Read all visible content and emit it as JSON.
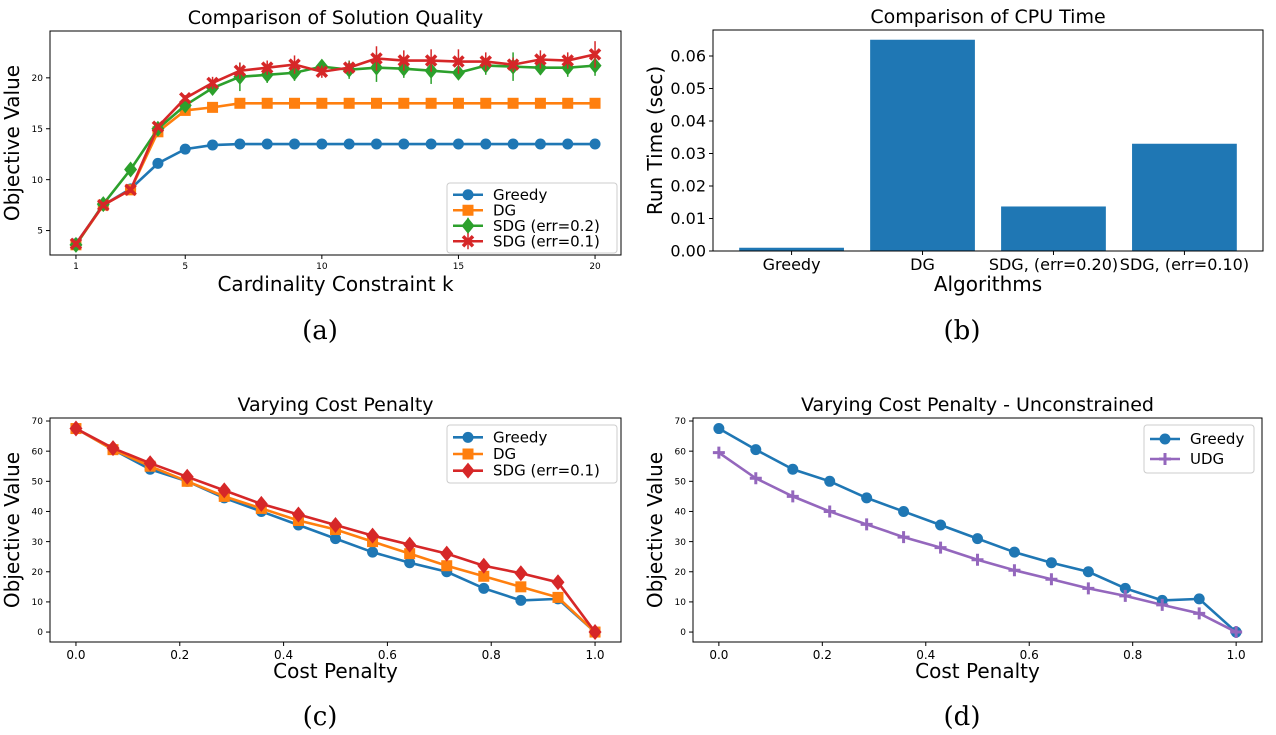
{
  "captions": [
    "(a)",
    "(b)",
    "(c)",
    "(d)"
  ],
  "chart_data": [
    {
      "type": "line",
      "title": "Comparison of Solution Quality",
      "xlabel": "Cardinality Constraint k",
      "ylabel": "Objective Value",
      "xlim": [
        0.05,
        20.95
      ],
      "ylim": [
        2.6,
        24.6
      ],
      "xticks": [
        1,
        5,
        10,
        15,
        20
      ],
      "xtick_labels": [
        "1",
        "5",
        "10",
        "15",
        "20"
      ],
      "yticks": [
        5,
        10,
        15,
        20
      ],
      "ytick_labels": [
        "5",
        "10",
        "15",
        "20"
      ],
      "grid": false,
      "legend_placement": "lower-right",
      "x": [
        1,
        2,
        3,
        4,
        5,
        6,
        7,
        8,
        9,
        10,
        11,
        12,
        13,
        14,
        15,
        16,
        17,
        18,
        19,
        20
      ],
      "series": [
        {
          "name": "Greedy",
          "color": "#1f77b4",
          "marker": "circle",
          "values": [
            3.7,
            7.5,
            9.1,
            11.6,
            13.0,
            13.4,
            13.5,
            13.5,
            13.5,
            13.5,
            13.5,
            13.5,
            13.5,
            13.5,
            13.5,
            13.5,
            13.5,
            13.5,
            13.5,
            13.5
          ]
        },
        {
          "name": "DG",
          "color": "#ff7f0e",
          "marker": "square",
          "values": [
            3.6,
            7.5,
            9.0,
            14.7,
            16.8,
            17.1,
            17.5,
            17.5,
            17.5,
            17.5,
            17.5,
            17.5,
            17.5,
            17.5,
            17.5,
            17.5,
            17.5,
            17.5,
            17.5,
            17.5
          ]
        },
        {
          "name": "SDG (err=0.2)",
          "color": "#2ca02c",
          "marker": "diamond",
          "values": [
            3.6,
            7.6,
            11.0,
            15.0,
            17.3,
            19.0,
            20.1,
            20.3,
            20.5,
            21.1,
            20.8,
            21.0,
            20.9,
            20.7,
            20.5,
            21.2,
            21.1,
            21.0,
            21.0,
            21.2
          ],
          "yerr": [
            0.3,
            0.3,
            0.6,
            0.4,
            0.4,
            0.4,
            1.4,
            0.8,
            0.8,
            0.7,
            0.9,
            1.4,
            0.9,
            1.3,
            0.5,
            0.9,
            1.4,
            0.7,
            0.9,
            1.0
          ]
        },
        {
          "name": "SDG (err=0.1)",
          "color": "#d62728",
          "marker": "x",
          "values": [
            3.7,
            7.5,
            9.0,
            15.2,
            18.0,
            19.5,
            20.7,
            21.0,
            21.3,
            20.6,
            21.0,
            21.9,
            21.7,
            21.7,
            21.6,
            21.6,
            21.3,
            21.8,
            21.7,
            22.3
          ],
          "yerr": [
            0.3,
            0.3,
            0.3,
            0.3,
            0.3,
            0.6,
            0.8,
            0.7,
            0.9,
            0.6,
            0.6,
            1.2,
            1.0,
            1.1,
            1.2,
            0.9,
            0.7,
            0.9,
            0.8,
            1.3
          ]
        }
      ]
    },
    {
      "type": "bar",
      "title": "Comparison of CPU Time",
      "xlabel": "Algorithms",
      "ylabel": "Run Time (sec)",
      "categories": [
        "Greedy",
        "DG",
        "SDG, (err=0.20)",
        "SDG, (err=0.10)"
      ],
      "values": [
        0.001,
        0.065,
        0.0137,
        0.033
      ],
      "color": "#1f77b4",
      "ylim": [
        0,
        0.068
      ],
      "yticks": [
        0,
        0.01,
        0.02,
        0.03,
        0.04,
        0.05,
        0.06
      ],
      "ytick_labels": [
        "0.00",
        "0.01",
        "0.02",
        "0.03",
        "0.04",
        "0.05",
        "0.06"
      ],
      "grid": false
    },
    {
      "type": "line",
      "title": "Varying Cost Penalty",
      "xlabel": "Cost Penalty",
      "ylabel": "Objective Value",
      "xlim": [
        -0.05,
        1.05
      ],
      "ylim": [
        -3.3,
        71
      ],
      "xticks": [
        0,
        0.2,
        0.4,
        0.6,
        0.8,
        1.0
      ],
      "xtick_labels": [
        "0.0",
        "0.2",
        "0.4",
        "0.6",
        "0.8",
        "1.0"
      ],
      "yticks": [
        0,
        10,
        20,
        30,
        40,
        50,
        60,
        70
      ],
      "ytick_labels": [
        "0",
        "10",
        "20",
        "30",
        "40",
        "50",
        "60",
        "70"
      ],
      "grid": false,
      "legend_placement": "upper-right",
      "x": [
        0,
        0.0714,
        0.1429,
        0.2143,
        0.2857,
        0.3571,
        0.4286,
        0.5,
        0.5714,
        0.6429,
        0.7143,
        0.7857,
        0.8571,
        0.9286,
        1.0
      ],
      "series": [
        {
          "name": "Greedy",
          "color": "#1f77b4",
          "marker": "circle",
          "values": [
            67.5,
            60.5,
            54,
            50,
            44.5,
            40,
            35.5,
            31,
            26.5,
            23,
            20,
            14.5,
            10.5,
            11,
            0
          ]
        },
        {
          "name": "DG",
          "color": "#ff7f0e",
          "marker": "square",
          "values": [
            67.5,
            60.5,
            55,
            50,
            45,
            41,
            37,
            34,
            30,
            26,
            22,
            18.5,
            15,
            11.5,
            0
          ]
        },
        {
          "name": "SDG (err=0.1)",
          "color": "#d62728",
          "marker": "diamond",
          "values": [
            67.5,
            61,
            56,
            51.5,
            47,
            42.5,
            39,
            35.5,
            32,
            29,
            26,
            22,
            19.5,
            16.5,
            0
          ]
        }
      ]
    },
    {
      "type": "line",
      "title": "Varying Cost Penalty - Unconstrained",
      "xlabel": "Cost Penalty",
      "ylabel": "Objective Value",
      "xlim": [
        -0.05,
        1.05
      ],
      "ylim": [
        -3.3,
        71
      ],
      "xticks": [
        0,
        0.2,
        0.4,
        0.6,
        0.8,
        1.0
      ],
      "xtick_labels": [
        "0.0",
        "0.2",
        "0.4",
        "0.6",
        "0.8",
        "1.0"
      ],
      "yticks": [
        0,
        10,
        20,
        30,
        40,
        50,
        60,
        70
      ],
      "ytick_labels": [
        "0",
        "10",
        "20",
        "30",
        "40",
        "50",
        "60",
        "70"
      ],
      "grid": false,
      "legend_placement": "upper-right",
      "x": [
        0,
        0.0714,
        0.1429,
        0.2143,
        0.2857,
        0.3571,
        0.4286,
        0.5,
        0.5714,
        0.6429,
        0.7143,
        0.7857,
        0.8571,
        0.9286,
        1.0
      ],
      "series": [
        {
          "name": "Greedy",
          "color": "#1f77b4",
          "marker": "circle",
          "values": [
            67.5,
            60.5,
            54,
            50,
            44.5,
            40,
            35.5,
            31,
            26.5,
            23,
            20,
            14.5,
            10.5,
            11,
            0
          ]
        },
        {
          "name": "UDG",
          "color": "#9467bd",
          "marker": "plus",
          "values": [
            59.5,
            51,
            45,
            40,
            35.7,
            31.5,
            28,
            24,
            20.5,
            17.5,
            14.5,
            12,
            9,
            6.2,
            0
          ]
        }
      ]
    }
  ]
}
